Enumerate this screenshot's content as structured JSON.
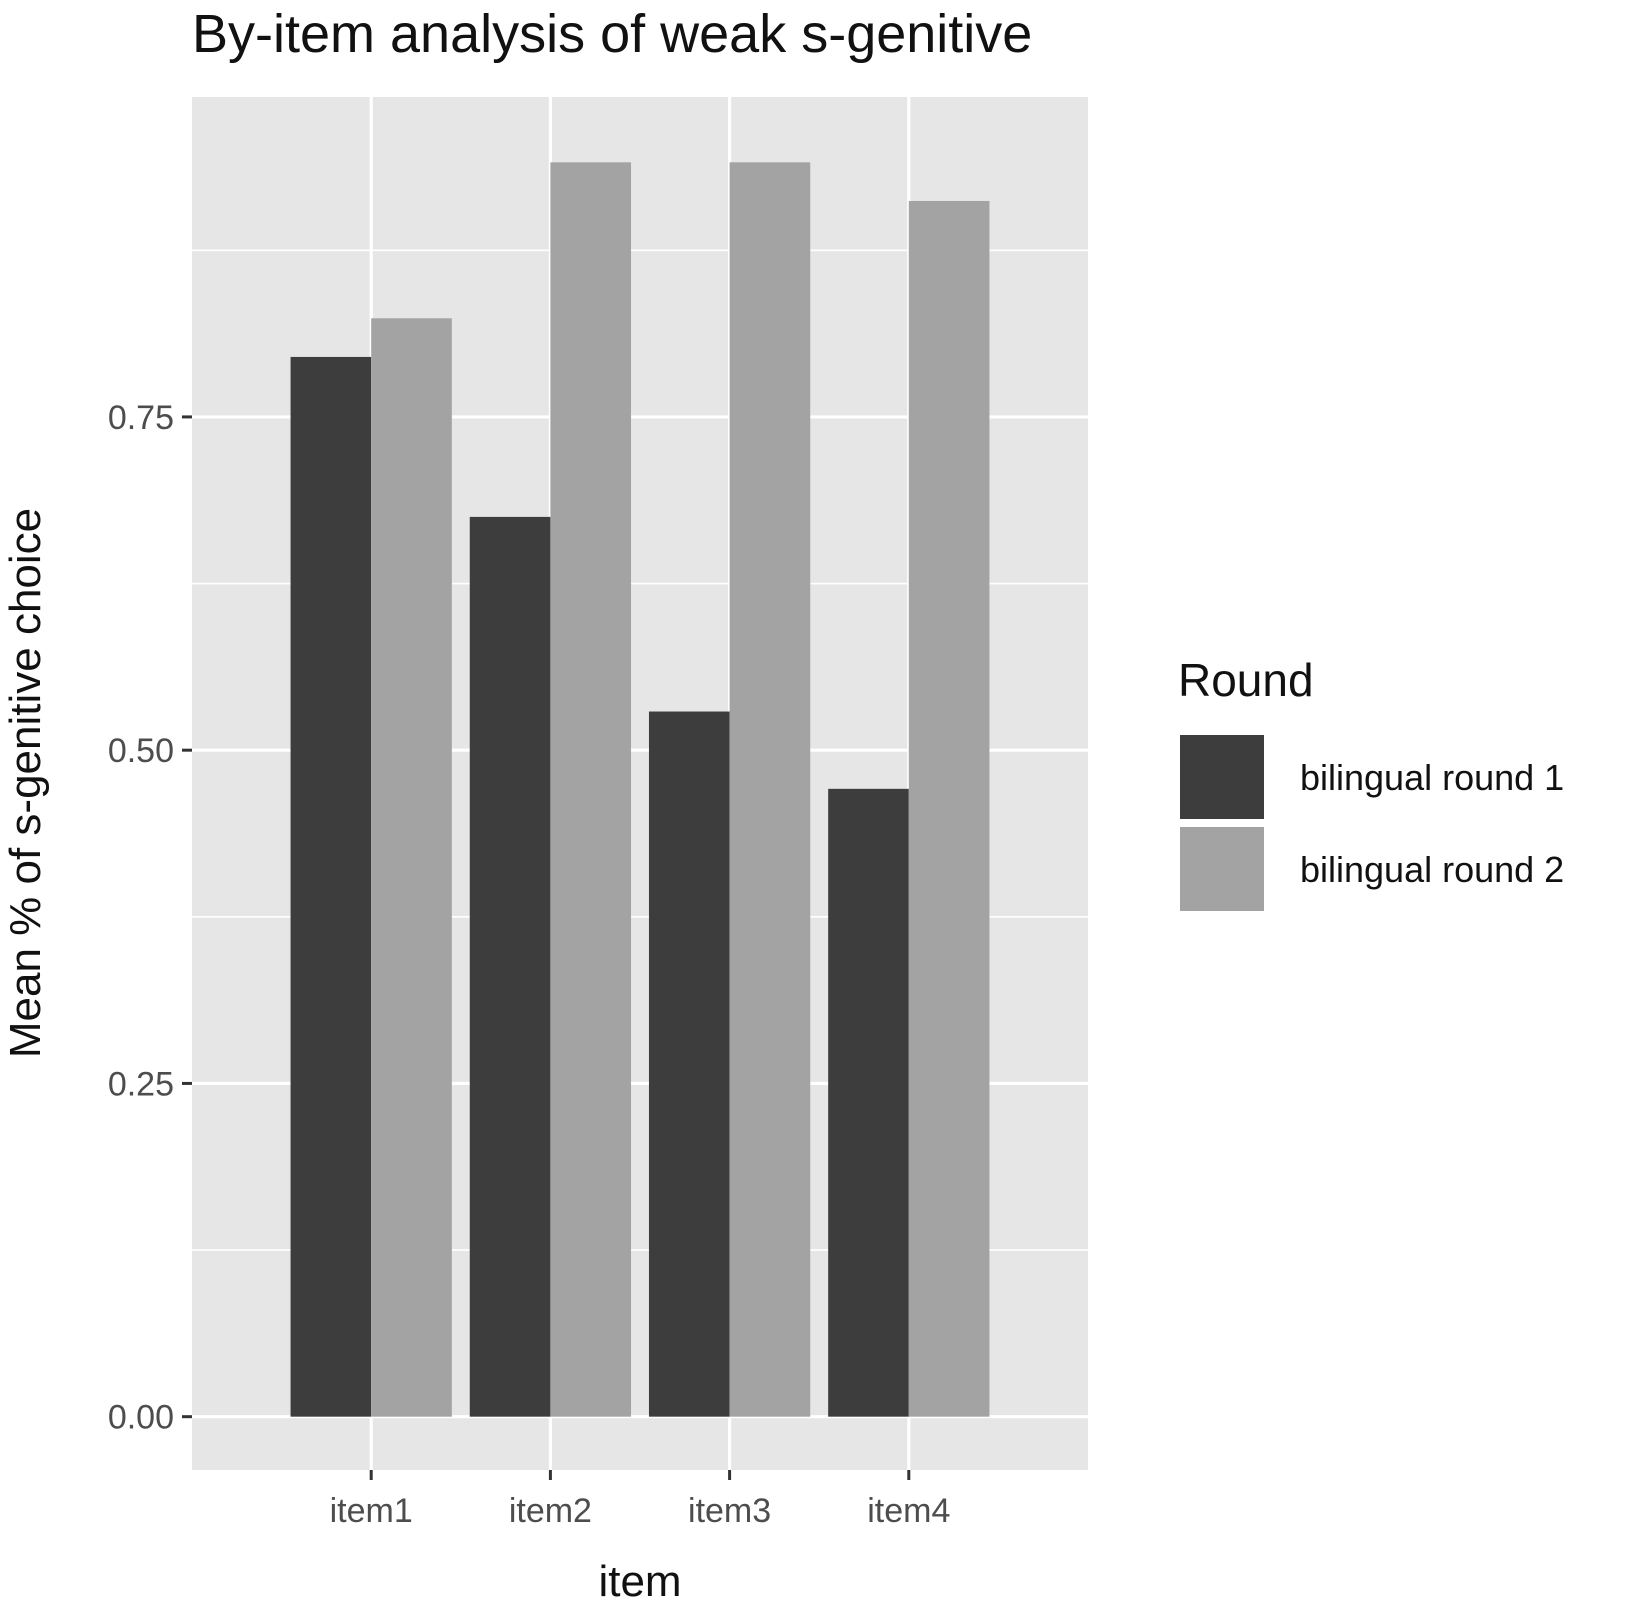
{
  "chart_data": {
    "type": "bar",
    "title": "By-item analysis of weak s-genitive",
    "xlabel": "item",
    "ylabel": "Mean % of s-genitive choice",
    "categories": [
      "item1",
      "item2",
      "item3",
      "item4"
    ],
    "series": [
      {
        "name": "bilingual round 1",
        "color": "#3d3d3d",
        "values": [
          0.795,
          0.675,
          0.529,
          0.471
        ]
      },
      {
        "name": "bilingual round 2",
        "color": "#a3a3a3",
        "values": [
          0.824,
          0.941,
          0.941,
          0.912
        ]
      }
    ],
    "ylim": [
      -0.04,
      0.99
    ],
    "yticks": [
      0.0,
      0.25,
      0.5,
      0.75
    ],
    "ytick_labels": [
      "0.00",
      "0.25",
      "0.50",
      "0.75"
    ],
    "grid": true,
    "legend": {
      "title": "Round",
      "position": "right"
    },
    "colors": {
      "panel_background": "#e6e6e6",
      "grid": "#ffffff",
      "tick": "#333333"
    }
  }
}
